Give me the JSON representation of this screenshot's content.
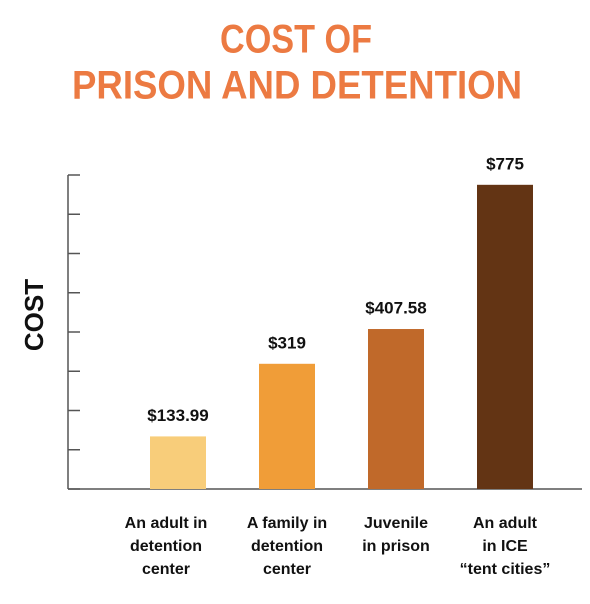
{
  "chart_data": {
    "type": "bar",
    "title": [
      "COST OF",
      "PRISON AND DETENTION"
    ],
    "y_label": "COST",
    "categories": [
      [
        "An adult in",
        "detention",
        "center"
      ],
      [
        "A family in",
        "detention",
        "center"
      ],
      [
        "Juvenile",
        "in prison"
      ],
      [
        "An adult",
        "in ICE",
        "“tent cities”"
      ]
    ],
    "values": [
      133.99,
      319,
      407.58,
      775
    ],
    "value_labels": [
      "$133.99",
      "$319",
      "$407.58",
      "$775"
    ],
    "colors": [
      "#f8cd7a",
      "#f09d38",
      "#c0692a",
      "#633414"
    ],
    "ylim": [
      0,
      800
    ],
    "yticks": [
      0,
      100,
      200,
      300,
      400,
      500,
      600,
      700,
      800
    ],
    "grid": false
  }
}
